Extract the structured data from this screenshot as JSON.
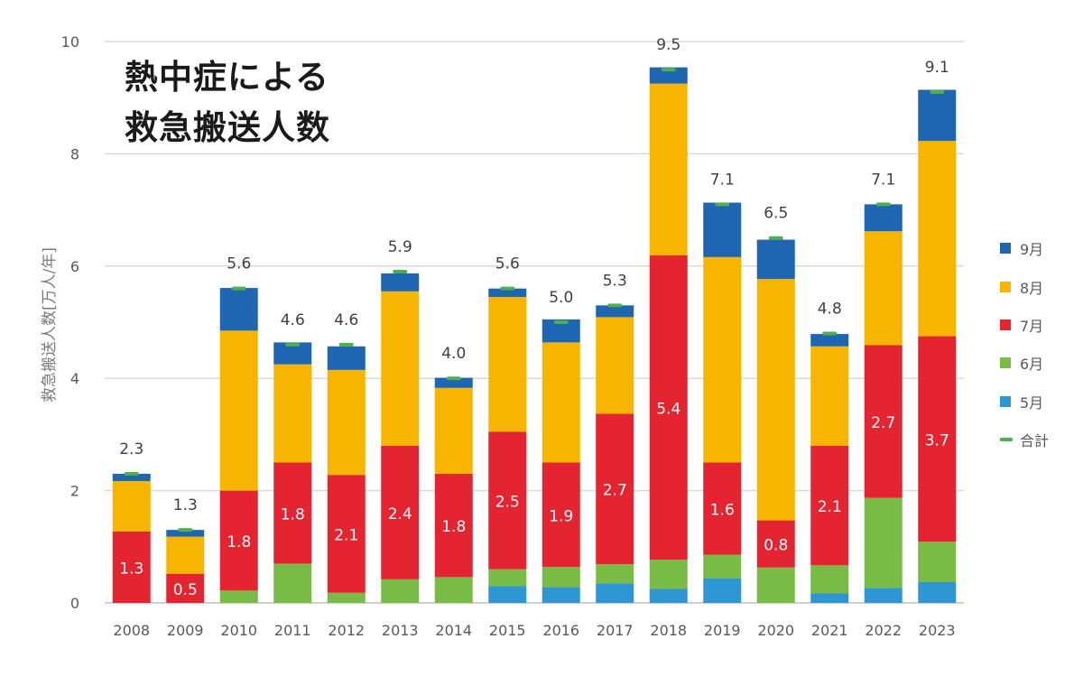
{
  "chart_data": {
    "type": "bar",
    "stacked": true,
    "title": "熱中症による",
    "subtitle": "救急搬送人数",
    "ylabel": "救急搬送人数[万人/年]",
    "xlabel": "",
    "ylim": [
      0,
      10
    ],
    "yticks": [
      "0",
      "2",
      "4",
      "6",
      "8",
      "10"
    ],
    "grid": true,
    "legend_position": "right",
    "categories": [
      "2008",
      "2009",
      "2010",
      "2011",
      "2012",
      "2013",
      "2014",
      "2015",
      "2016",
      "2017",
      "2018",
      "2019",
      "2020",
      "2021",
      "2022",
      "2023"
    ],
    "series": [
      {
        "name": "5月",
        "color": "#2e96d3",
        "values": [
          0,
          0,
          0,
          0,
          0,
          0,
          0,
          0.3,
          0.28,
          0.35,
          0.25,
          0.44,
          0,
          0.17,
          0.27,
          0.37
        ]
      },
      {
        "name": "6月",
        "color": "#78bc45",
        "values": [
          0,
          0,
          0.22,
          0.7,
          0.18,
          0.42,
          0.46,
          0.3,
          0.36,
          0.34,
          0.52,
          0.42,
          0.63,
          0.5,
          1.6,
          0.72
        ]
      },
      {
        "name": "7月",
        "color": "#e42431",
        "values": [
          1.27,
          0.52,
          1.78,
          1.8,
          2.1,
          2.38,
          1.84,
          2.45,
          1.86,
          2.68,
          5.42,
          1.64,
          0.84,
          2.13,
          2.72,
          3.66
        ]
      },
      {
        "name": "8月",
        "color": "#f8b500",
        "values": [
          0.9,
          0.66,
          2.85,
          1.75,
          1.87,
          2.75,
          1.53,
          2.4,
          2.14,
          1.72,
          3.06,
          3.66,
          4.3,
          1.77,
          2.03,
          3.48
        ]
      },
      {
        "name": "9月",
        "color": "#1f66b0",
        "values": [
          0.13,
          0.12,
          0.76,
          0.39,
          0.42,
          0.32,
          0.18,
          0.15,
          0.41,
          0.21,
          0.29,
          0.97,
          0.7,
          0.22,
          0.48,
          0.91
        ]
      }
    ],
    "totals": [
      2.3,
      1.3,
      5.6,
      4.6,
      4.6,
      5.9,
      4.0,
      5.6,
      5.0,
      5.3,
      9.5,
      7.1,
      6.5,
      4.8,
      7.1,
      9.1
    ],
    "total_labels": [
      "2.3",
      "1.3",
      "5.6",
      "4.6",
      "4.6",
      "5.9",
      "4.0",
      "5.6",
      "5.0",
      "5.3",
      "9.5",
      "7.1",
      "6.5",
      "4.8",
      "7.1",
      "9.1"
    ],
    "total_series_name": "合計",
    "total_color": "#4caf50",
    "july_labels": [
      "1.3",
      "0.5",
      "1.8",
      "1.8",
      "2.1",
      "2.4",
      "1.8",
      "2.5",
      "1.9",
      "2.7",
      "5.4",
      "1.6",
      "0.8",
      "2.1",
      "2.7",
      "3.7"
    ]
  },
  "legend": {
    "items": [
      {
        "label": "9月",
        "color": "#1f66b0",
        "kind": "swatch"
      },
      {
        "label": "8月",
        "color": "#f8b500",
        "kind": "swatch"
      },
      {
        "label": "7月",
        "color": "#e42431",
        "kind": "swatch"
      },
      {
        "label": "6月",
        "color": "#78bc45",
        "kind": "swatch"
      },
      {
        "label": "5月",
        "color": "#2e96d3",
        "kind": "swatch"
      },
      {
        "label": "合計",
        "color": "#4caf50",
        "kind": "line"
      }
    ]
  }
}
